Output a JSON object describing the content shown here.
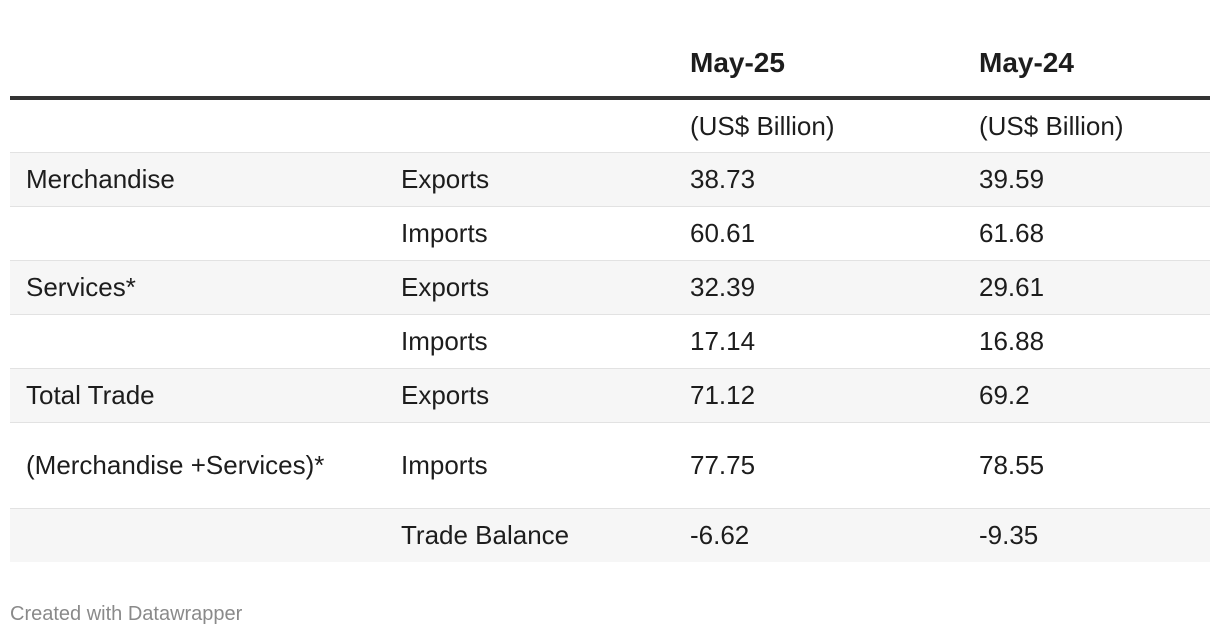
{
  "chart_data": {
    "type": "table",
    "columns": [
      "",
      "",
      "May-25",
      "May-24"
    ],
    "units": [
      "",
      "",
      "(US$ Billion)",
      "(US$ Billion)"
    ],
    "rows": [
      {
        "category": "Merchandise",
        "item": "Exports",
        "may25": "38.73",
        "may24": "39.59"
      },
      {
        "category": "",
        "item": "Imports",
        "may25": "60.61",
        "may24": "61.68"
      },
      {
        "category": "Services*",
        "item": "Exports",
        "may25": "32.39",
        "may24": "29.61"
      },
      {
        "category": "",
        "item": "Imports",
        "may25": "17.14",
        "may24": "16.88"
      },
      {
        "category": "Total Trade",
        "item": "Exports",
        "may25": "71.12",
        "may24": "69.2"
      },
      {
        "category": "(Merchandise +Services)*",
        "item": "Imports",
        "may25": "77.75",
        "may24": "78.55"
      },
      {
        "category": "",
        "item": "Trade Balance",
        "may25": "-6.62",
        "may24": "-9.35"
      }
    ]
  },
  "footer": "Created with Datawrapper"
}
